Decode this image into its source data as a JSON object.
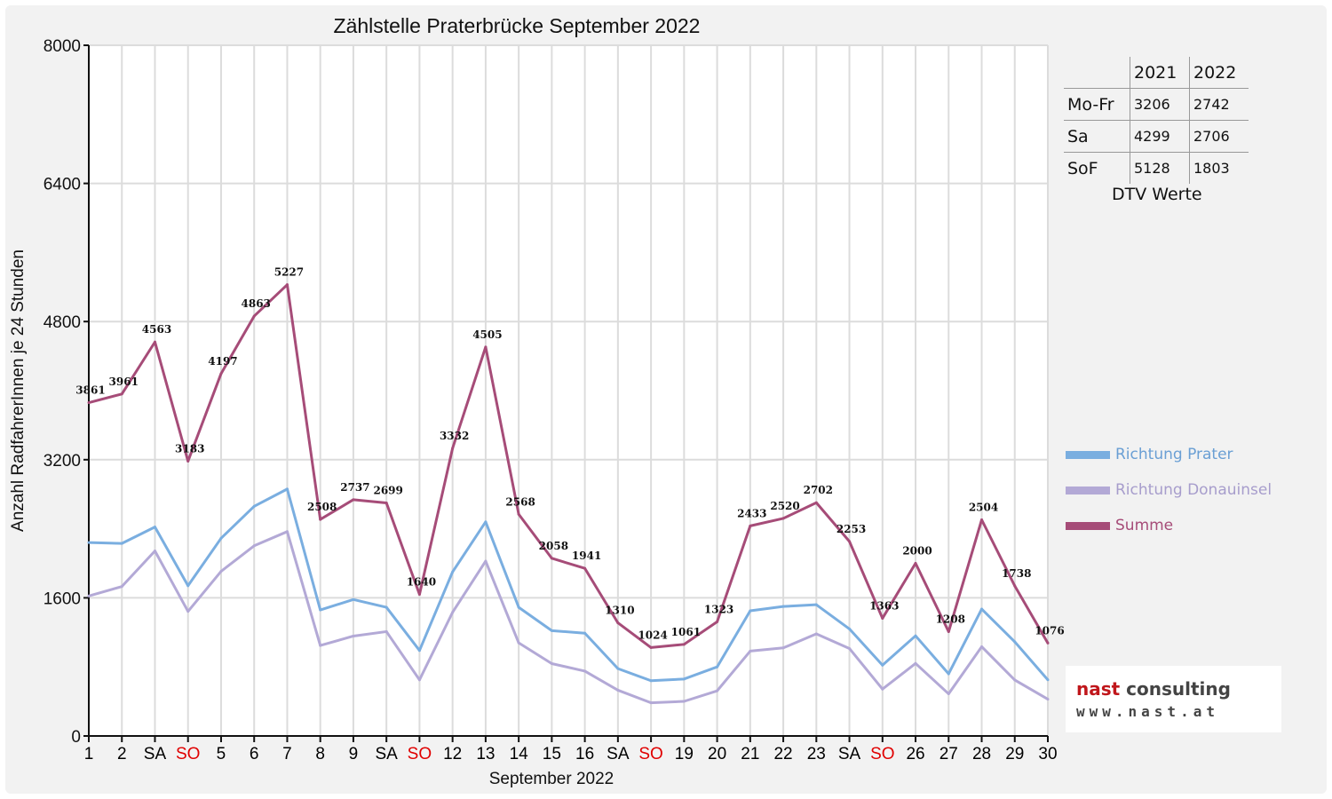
{
  "chart_data": {
    "type": "line",
    "title": "Zählstelle Praterbrücke September 2022",
    "xlabel": "September 2022",
    "ylabel": "Anzahl RadfahrerInnen je 24 Stunden",
    "ylim": [
      0,
      8000
    ],
    "yticks": [
      "0",
      "1600",
      "3200",
      "4800",
      "6400",
      "8000"
    ],
    "grid": true,
    "legend_position": "right",
    "categories": [
      "1",
      "2",
      "SA",
      "SO",
      "5",
      "6",
      "7",
      "8",
      "9",
      "SA",
      "SO",
      "12",
      "13",
      "14",
      "15",
      "16",
      "SA",
      "SO",
      "19",
      "20",
      "21",
      "22",
      "23",
      "SA",
      "SO",
      "26",
      "27",
      "28",
      "29",
      "30"
    ],
    "category_colors": [
      "#000",
      "#000",
      "#000",
      "#e00000",
      "#000",
      "#000",
      "#000",
      "#000",
      "#000",
      "#000",
      "#e00000",
      "#000",
      "#000",
      "#000",
      "#000",
      "#000",
      "#000",
      "#e00000",
      "#000",
      "#000",
      "#000",
      "#000",
      "#000",
      "#000",
      "#e00000",
      "#000",
      "#000",
      "#000",
      "#000",
      "#000"
    ],
    "series": [
      {
        "name": "Richtung Prater",
        "color": "#7aaee0",
        "values": [
          2240,
          2230,
          2420,
          1740,
          2290,
          2660,
          2860,
          1460,
          1580,
          1490,
          990,
          1900,
          2480,
          1490,
          1220,
          1190,
          780,
          640,
          660,
          800,
          1450,
          1500,
          1520,
          1240,
          820,
          1160,
          720,
          1470,
          1090,
          650
        ]
      },
      {
        "name": "Richtung Donauinsel",
        "color": "#b3a9d6",
        "values": [
          1621,
          1731,
          2143,
          1443,
          1907,
          2203,
          2367,
          1048,
          1157,
          1209,
          650,
          1432,
          2025,
          1078,
          838,
          751,
          530,
          384,
          401,
          523,
          983,
          1020,
          1182,
          1013,
          543,
          840,
          488,
          1034,
          648,
          426
        ]
      },
      {
        "name": "Summe",
        "color": "#a64c78",
        "values": [
          3861,
          3961,
          4563,
          3183,
          4197,
          4863,
          5227,
          2508,
          2737,
          2699,
          1640,
          3332,
          4505,
          2568,
          2058,
          1941,
          1310,
          1024,
          1061,
          1323,
          2433,
          2520,
          2702,
          2253,
          1363,
          2000,
          1208,
          2504,
          1738,
          1076
        ],
        "labels": [
          "3861",
          "3961",
          "4563",
          "3183",
          "4197",
          "4863",
          "5227",
          "2508",
          "2737",
          "2699",
          "1640",
          "3332",
          "4505",
          "2568",
          "2058",
          "1941",
          "1310",
          "1024",
          "1061",
          "1323",
          "2433",
          "2520",
          "2702",
          "2253",
          "1363",
          "2000",
          "1208",
          "2504",
          "1738",
          "1076"
        ]
      }
    ]
  },
  "dtv": {
    "headers": [
      "2021",
      "2022"
    ],
    "rows": [
      {
        "label": "Mo-Fr",
        "v2021": "3206",
        "v2022": "2742"
      },
      {
        "label": "Sa",
        "v2021": "4299",
        "v2022": "2706"
      },
      {
        "label": "SoF",
        "v2021": "5128",
        "v2022": "1803"
      }
    ],
    "caption": "DTV Werte"
  },
  "logo": {
    "name_a": "nast",
    "name_b": " consulting",
    "url": "www.nast.at"
  }
}
